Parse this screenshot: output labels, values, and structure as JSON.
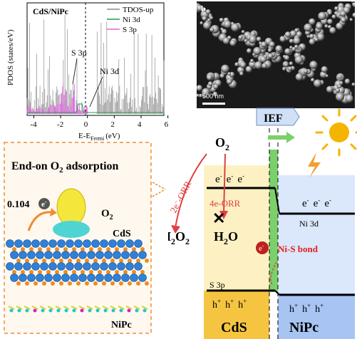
{
  "dos_panel": {
    "title": "CdS/NiPc",
    "ylabel": "PDOS (states/eV)",
    "xlabel": "E-E",
    "xlabel_sub": "Fermi",
    "xlabel_unit": "(eV)",
    "xticks": [
      "-4",
      "-2",
      "0",
      "2",
      "4",
      "6"
    ],
    "legend": [
      "TDOS-up",
      "Ni 3d",
      "S 3p"
    ],
    "annot_s3p": "S 3p",
    "annot_ni3d": "Ni 3d",
    "colors": {
      "tdos": "#8c8c8c",
      "ni": "#1e9e4a",
      "s": "#e066e0"
    }
  },
  "sem_panel": {
    "label": "b",
    "scale": "500 nm"
  },
  "adsorption_panel": {
    "title": "End-on O",
    "title_sub": "2",
    "title_rest": " adsorption",
    "charge_value": "0.104",
    "electron": "e",
    "electron_sup": "-",
    "o2": "O",
    "o2_sub": "2",
    "cds": "CdS",
    "nipc": "NiPc"
  },
  "band_diagram": {
    "o2": "O",
    "o2_sub": "2",
    "ief": "IEF",
    "orr2e": "2e",
    "orr2e_rest": "-ORR",
    "orr4e": "4e",
    "orr4e_rest": "-ORR",
    "h2o2_a": "H",
    "h2o2_b": "2",
    "h2o2_c": "O",
    "h2o2_d": "2",
    "h2o_a": "H",
    "h2o_b": "2",
    "h2o_c": "O",
    "electron": "e",
    "electron_sup": "-",
    "hole": "h",
    "hole_sup": "+",
    "ni3d": "Ni 3d",
    "s3p": "S 3p",
    "nis_bond": "Ni-S bond",
    "cds": "CdS",
    "nipc": "NiPc",
    "colors": {
      "cds": "#f5c542",
      "nipc": "#a7c4f2",
      "junction": "#7bd06b",
      "sun": "#f5b400",
      "bolt": "#f0a030"
    }
  }
}
